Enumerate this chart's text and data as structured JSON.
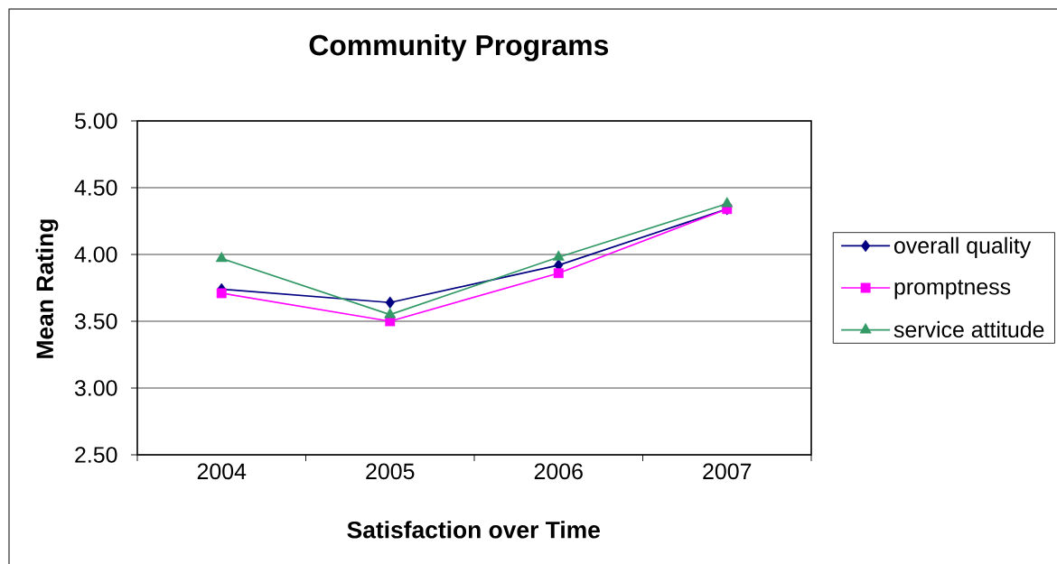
{
  "chart_data": {
    "type": "line",
    "title": "Community Programs",
    "xlabel": "Satisfaction over Time",
    "ylabel": "Mean Rating",
    "categories": [
      "2004",
      "2005",
      "2006",
      "2007"
    ],
    "series": [
      {
        "name": "overall quality",
        "color": "#000080",
        "marker": "diamond",
        "values": [
          3.74,
          3.64,
          3.92,
          4.34
        ]
      },
      {
        "name": "promptness",
        "color": "#ff00ff",
        "marker": "square",
        "values": [
          3.71,
          3.5,
          3.86,
          4.34
        ]
      },
      {
        "name": "service attitude",
        "color": "#339966",
        "marker": "triangle",
        "values": [
          3.97,
          3.55,
          3.98,
          4.38
        ]
      }
    ],
    "ylim": [
      2.5,
      5
    ],
    "yticks": [
      {
        "value": 2.5,
        "label": "2.50"
      },
      {
        "value": 3,
        "label": "3.00"
      },
      {
        "value": 3.5,
        "label": "3.50"
      },
      {
        "value": 4,
        "label": "4.00"
      },
      {
        "value": 4.5,
        "label": "4.50"
      },
      {
        "value": 5,
        "label": "5.00"
      }
    ],
    "grid": "y",
    "legend": "right",
    "line_style": "solid"
  }
}
